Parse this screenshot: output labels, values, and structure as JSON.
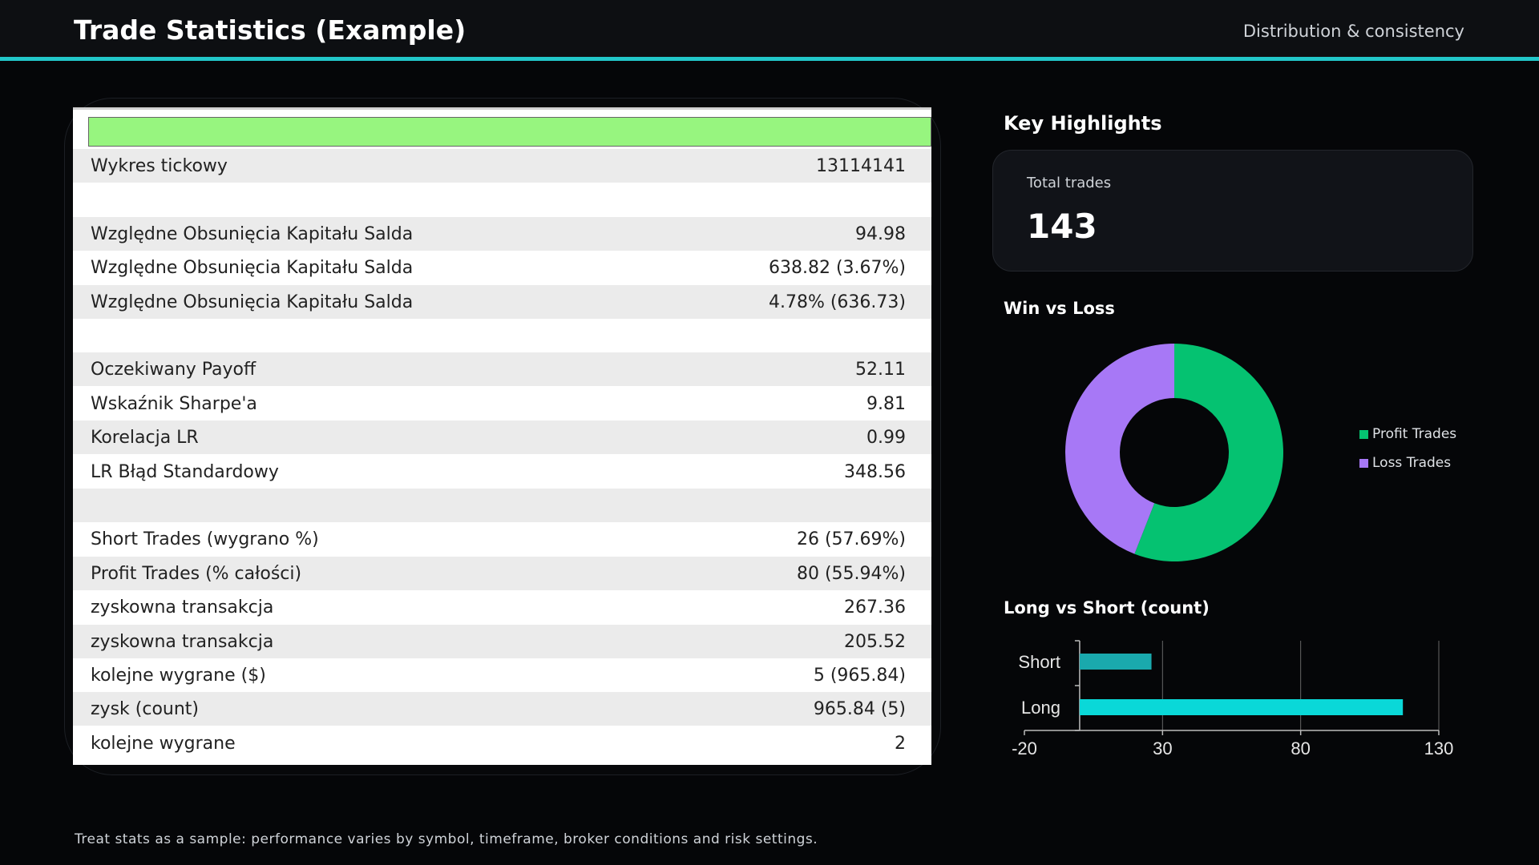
{
  "header": {
    "title": "Trade Statistics (Example)",
    "subtitle": "Distribution & consistency"
  },
  "table": {
    "rows": [
      {
        "label": "Wykres tickowy",
        "value": "13114141",
        "shade": true
      },
      {
        "label": "",
        "value": "",
        "shade": false
      },
      {
        "label": "Względne Obsunięcia Kapitału Salda",
        "value": "94.98",
        "shade": true
      },
      {
        "label": "Względne Obsunięcia Kapitału Salda",
        "value": "638.82 (3.67%)",
        "shade": false
      },
      {
        "label": "Względne Obsunięcia Kapitału Salda",
        "value": "4.78% (636.73)",
        "shade": true
      },
      {
        "label": "",
        "value": "",
        "shade": false
      },
      {
        "label": "Oczekiwany Payoff",
        "value": "52.11",
        "shade": true
      },
      {
        "label": "Wskaźnik Sharpe'a",
        "value": "9.81",
        "shade": false
      },
      {
        "label": "Korelacja LR",
        "value": "0.99",
        "shade": true
      },
      {
        "label": "LR Błąd Standardowy",
        "value": "348.56",
        "shade": false
      },
      {
        "label": "",
        "value": "",
        "shade": true
      },
      {
        "label": "Short Trades (wygrano %)",
        "value": "26 (57.69%)",
        "shade": false
      },
      {
        "label": "Profit Trades (% całości)",
        "value": "80 (55.94%)",
        "shade": true
      },
      {
        "label": "zyskowna transakcja",
        "value": "267.36",
        "shade": false
      },
      {
        "label": "zyskowna transakcja",
        "value": "205.52",
        "shade": true
      },
      {
        "label": "kolejne wygrane ($)",
        "value": "5 (965.84)",
        "shade": false
      },
      {
        "label": "zysk (count)",
        "value": "965.84 (5)",
        "shade": true
      },
      {
        "label": "kolejne wygrane",
        "value": "2",
        "shade": false
      }
    ]
  },
  "highlights": {
    "title": "Key Highlights",
    "total_label": "Total trades",
    "total_value": "143"
  },
  "chart_data": [
    {
      "type": "pie",
      "title": "Win vs Loss",
      "categories": [
        "Profit Trades",
        "Loss Trades"
      ],
      "values": [
        80,
        63
      ],
      "colors": [
        "#05c271",
        "#a778f6"
      ],
      "donut": true,
      "legend": "right"
    },
    {
      "type": "bar",
      "orientation": "horizontal",
      "title": "Long  vs Short (count)",
      "categories": [
        "Short",
        "Long"
      ],
      "values": [
        26,
        117
      ],
      "colors": [
        "#1aa9ad",
        "#0ad8d8"
      ],
      "xlim": [
        -20,
        130
      ],
      "xticks": [
        -20,
        30,
        80,
        130
      ],
      "grid": true
    }
  ],
  "footer": {
    "note": "Treat stats as a sample: performance varies by symbol, timeframe, broker conditions and risk settings."
  }
}
